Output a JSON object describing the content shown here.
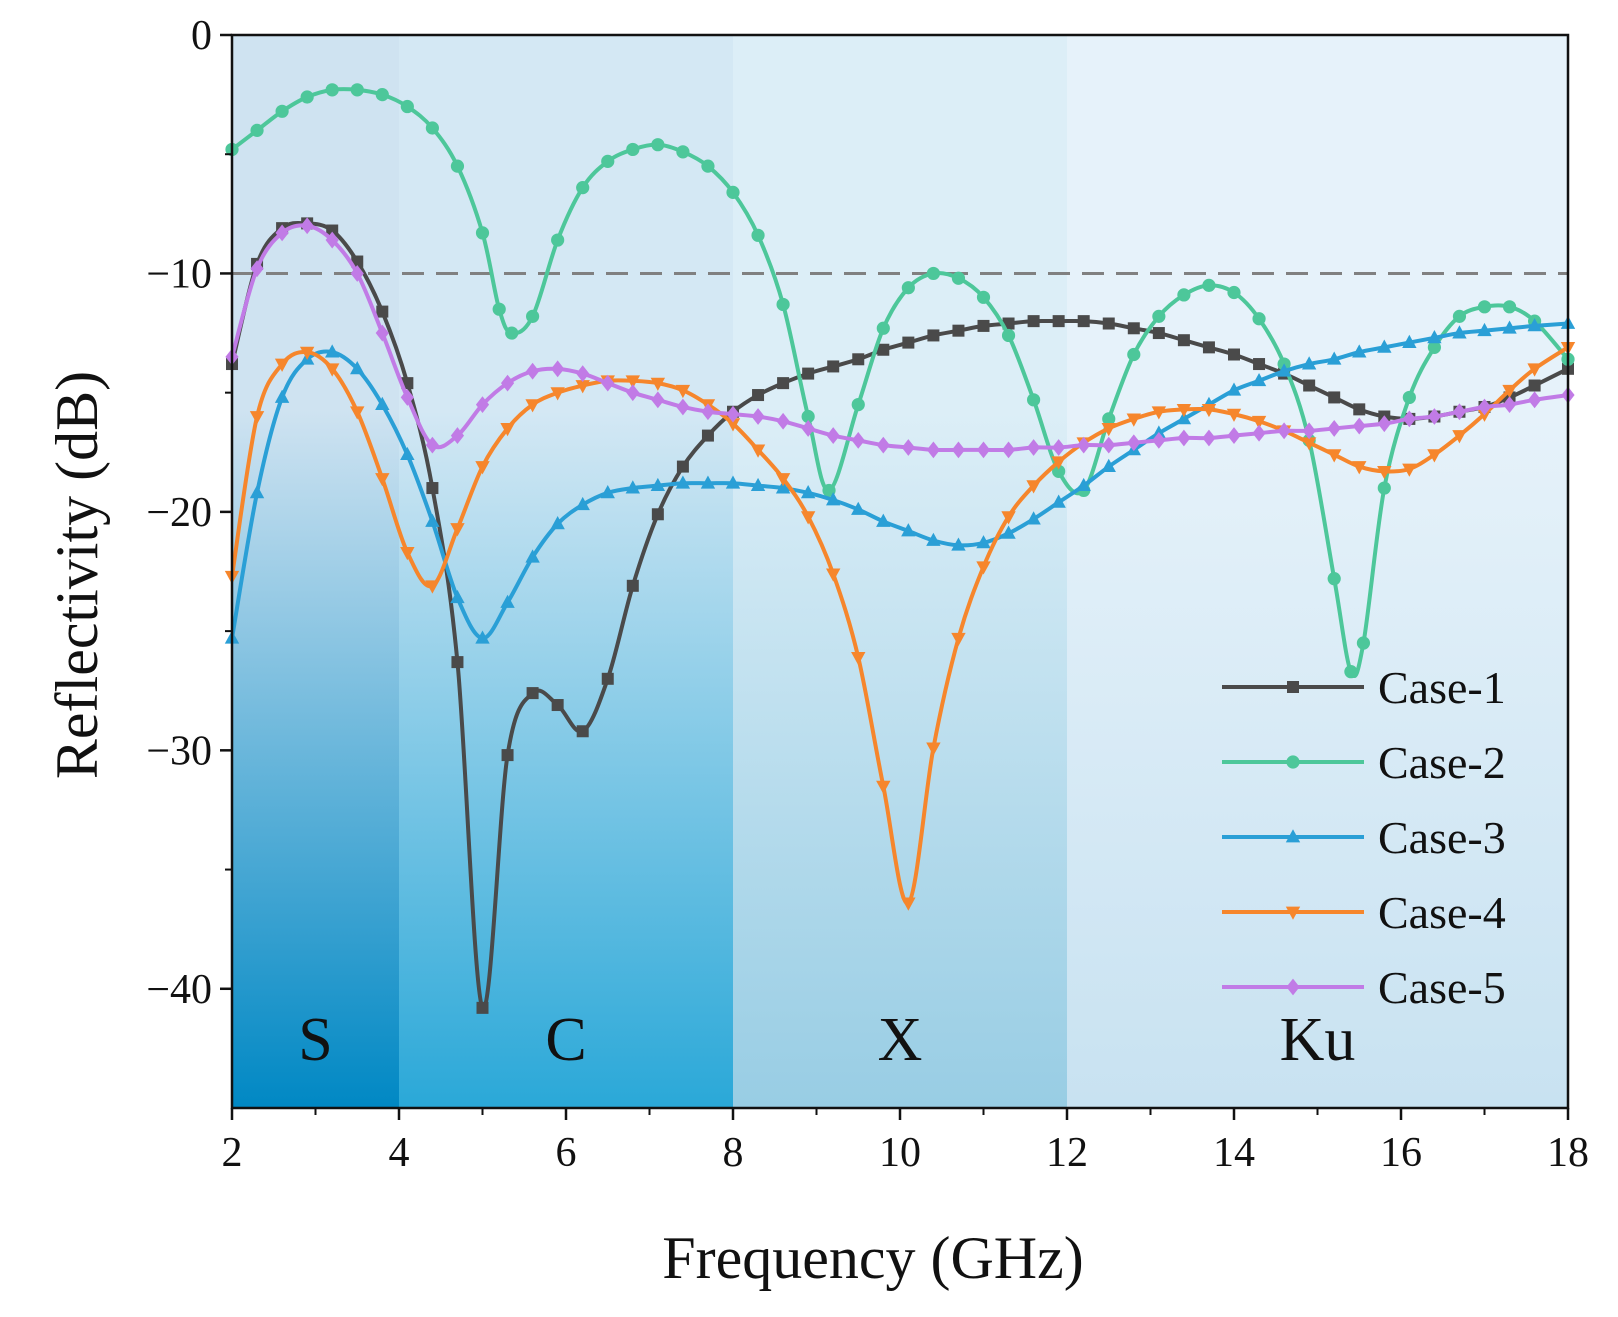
{
  "chart_data": {
    "type": "line",
    "xlabel": "Frequency (GHz)",
    "ylabel": "Reflectivity (dB)",
    "xlim": [
      2,
      18
    ],
    "ylim": [
      -45,
      0
    ],
    "xticks": [
      2,
      4,
      6,
      8,
      10,
      12,
      14,
      16,
      18
    ],
    "yticks": [
      0,
      -10,
      -20,
      -30,
      -40
    ],
    "xtick_labels": [
      "2",
      "4",
      "6",
      "8",
      "10",
      "12",
      "14",
      "16",
      "18"
    ],
    "ytick_labels": [
      "0",
      "−10",
      "−20",
      "−30",
      "−40"
    ],
    "reference_line": {
      "y": -10,
      "style": "dashed",
      "color": "#808080"
    },
    "bands": [
      {
        "label": "S",
        "from": 2,
        "to": 4,
        "color_top": "#cfe3f1",
        "color_bottom": "#0088c4"
      },
      {
        "label": "C",
        "from": 4,
        "to": 8,
        "color_top": "#d4e8f4",
        "color_bottom": "#2aa8d8"
      },
      {
        "label": "X",
        "from": 8,
        "to": 12,
        "color_top": "#dceef7",
        "color_bottom": "#98cde4"
      },
      {
        "label": "Ku",
        "from": 12,
        "to": 18,
        "color_top": "#e6f2fa",
        "color_bottom": "#c8e2f1"
      }
    ],
    "legend_position": "lower-right",
    "series": [
      {
        "name": "Case-1",
        "color": "#4a4a4a",
        "marker": "square",
        "x": [
          2,
          2.3,
          2.6,
          2.9,
          3.2,
          3.5,
          3.8,
          4.1,
          4.4,
          4.7,
          5.0,
          5.3,
          5.6,
          5.9,
          6.2,
          6.5,
          6.8,
          7.1,
          7.4,
          7.7,
          8.0,
          8.3,
          8.6,
          8.9,
          9.2,
          9.5,
          9.8,
          10.1,
          10.4,
          10.7,
          11.0,
          11.3,
          11.6,
          11.9,
          12.2,
          12.5,
          12.8,
          13.1,
          13.4,
          13.7,
          14.0,
          14.3,
          14.6,
          14.9,
          15.2,
          15.5,
          15.8,
          16.1,
          16.4,
          16.7,
          17.0,
          17.3,
          17.6,
          18.0
        ],
        "y": [
          -13.8,
          -9.6,
          -8.1,
          -7.9,
          -8.2,
          -9.5,
          -11.6,
          -14.6,
          -19.0,
          -26.3,
          -40.8,
          -30.2,
          -27.6,
          -28.1,
          -29.2,
          -27.0,
          -23.1,
          -20.1,
          -18.1,
          -16.8,
          -15.8,
          -15.1,
          -14.6,
          -14.2,
          -13.9,
          -13.6,
          -13.2,
          -12.9,
          -12.6,
          -12.4,
          -12.2,
          -12.1,
          -12.0,
          -12.0,
          -12.0,
          -12.1,
          -12.3,
          -12.5,
          -12.8,
          -13.1,
          -13.4,
          -13.8,
          -14.2,
          -14.7,
          -15.2,
          -15.7,
          -16.0,
          -16.1,
          -16.0,
          -15.8,
          -15.6,
          -15.2,
          -14.7,
          -14.0
        ]
      },
      {
        "name": "Case-2",
        "color": "#4dc79a",
        "marker": "circle",
        "x": [
          2,
          2.3,
          2.6,
          2.9,
          3.2,
          3.5,
          3.8,
          4.1,
          4.4,
          4.7,
          5.0,
          5.2,
          5.35,
          5.6,
          5.9,
          6.2,
          6.5,
          6.8,
          7.1,
          7.4,
          7.7,
          8.0,
          8.3,
          8.6,
          8.9,
          9.15,
          9.5,
          9.8,
          10.1,
          10.4,
          10.7,
          11.0,
          11.3,
          11.6,
          11.9,
          12.2,
          12.5,
          12.8,
          13.1,
          13.4,
          13.7,
          14.0,
          14.3,
          14.6,
          14.9,
          15.2,
          15.4,
          15.55,
          15.8,
          16.1,
          16.4,
          16.7,
          17.0,
          17.3,
          17.6,
          18.0
        ],
        "y": [
          -4.8,
          -4.0,
          -3.2,
          -2.6,
          -2.3,
          -2.3,
          -2.5,
          -3.0,
          -3.9,
          -5.5,
          -8.3,
          -11.5,
          -12.5,
          -11.8,
          -8.6,
          -6.4,
          -5.3,
          -4.8,
          -4.6,
          -4.9,
          -5.5,
          -6.6,
          -8.4,
          -11.3,
          -16.0,
          -19.1,
          -15.5,
          -12.3,
          -10.6,
          -10.0,
          -10.2,
          -11.0,
          -12.6,
          -15.3,
          -18.3,
          -19.1,
          -16.1,
          -13.4,
          -11.8,
          -10.9,
          -10.5,
          -10.8,
          -11.9,
          -13.8,
          -17.0,
          -22.8,
          -26.7,
          -25.5,
          -19.0,
          -15.2,
          -13.1,
          -11.8,
          -11.4,
          -11.4,
          -12.0,
          -13.6
        ]
      },
      {
        "name": "Case-3",
        "color": "#2a9fd6",
        "marker": "triangle-up",
        "x": [
          2,
          2.3,
          2.6,
          2.9,
          3.2,
          3.5,
          3.8,
          4.1,
          4.4,
          4.7,
          5.0,
          5.3,
          5.6,
          5.9,
          6.2,
          6.5,
          6.8,
          7.1,
          7.4,
          7.7,
          8.0,
          8.3,
          8.6,
          8.9,
          9.2,
          9.5,
          9.8,
          10.1,
          10.4,
          10.7,
          11.0,
          11.3,
          11.6,
          11.9,
          12.2,
          12.5,
          12.8,
          13.1,
          13.4,
          13.7,
          14.0,
          14.3,
          14.6,
          14.9,
          15.2,
          15.5,
          15.8,
          16.1,
          16.4,
          16.7,
          17.0,
          17.3,
          17.6,
          18.0
        ],
        "y": [
          -25.3,
          -19.2,
          -15.2,
          -13.6,
          -13.3,
          -14.0,
          -15.5,
          -17.6,
          -20.4,
          -23.6,
          -25.3,
          -23.8,
          -21.9,
          -20.5,
          -19.7,
          -19.2,
          -19.0,
          -18.9,
          -18.8,
          -18.8,
          -18.8,
          -18.9,
          -19.0,
          -19.2,
          -19.5,
          -19.9,
          -20.4,
          -20.8,
          -21.2,
          -21.4,
          -21.3,
          -20.9,
          -20.3,
          -19.6,
          -18.9,
          -18.1,
          -17.4,
          -16.7,
          -16.1,
          -15.5,
          -14.9,
          -14.5,
          -14.1,
          -13.8,
          -13.6,
          -13.3,
          -13.1,
          -12.9,
          -12.7,
          -12.5,
          -12.4,
          -12.3,
          -12.2,
          -12.1
        ]
      },
      {
        "name": "Case-4",
        "color": "#f6862c",
        "marker": "triangle-down",
        "x": [
          2,
          2.3,
          2.6,
          2.9,
          3.2,
          3.5,
          3.8,
          4.1,
          4.4,
          4.7,
          5.0,
          5.3,
          5.6,
          5.9,
          6.2,
          6.5,
          6.8,
          7.1,
          7.4,
          7.7,
          8.0,
          8.3,
          8.6,
          8.9,
          9.2,
          9.5,
          9.8,
          10.1,
          10.4,
          10.7,
          11.0,
          11.3,
          11.6,
          11.9,
          12.2,
          12.5,
          12.8,
          13.1,
          13.4,
          13.7,
          14.0,
          14.3,
          14.6,
          14.9,
          15.2,
          15.5,
          15.8,
          16.1,
          16.4,
          16.7,
          17.0,
          17.3,
          17.6,
          18.0
        ],
        "y": [
          -22.7,
          -16.0,
          -13.8,
          -13.3,
          -14.0,
          -15.8,
          -18.6,
          -21.7,
          -23.1,
          -20.7,
          -18.1,
          -16.5,
          -15.5,
          -15.0,
          -14.7,
          -14.5,
          -14.5,
          -14.6,
          -14.9,
          -15.5,
          -16.3,
          -17.4,
          -18.6,
          -20.2,
          -22.6,
          -26.1,
          -31.5,
          -36.4,
          -29.9,
          -25.3,
          -22.3,
          -20.2,
          -18.9,
          -17.9,
          -17.1,
          -16.5,
          -16.1,
          -15.8,
          -15.7,
          -15.7,
          -15.9,
          -16.2,
          -16.6,
          -17.1,
          -17.6,
          -18.1,
          -18.3,
          -18.2,
          -17.6,
          -16.8,
          -15.9,
          -14.9,
          -14.0,
          -13.1
        ]
      },
      {
        "name": "Case-5",
        "color": "#c17be6",
        "marker": "diamond",
        "x": [
          2,
          2.3,
          2.6,
          2.9,
          3.2,
          3.5,
          3.8,
          4.1,
          4.4,
          4.7,
          5.0,
          5.3,
          5.6,
          5.9,
          6.2,
          6.5,
          6.8,
          7.1,
          7.4,
          7.7,
          8.0,
          8.3,
          8.6,
          8.9,
          9.2,
          9.5,
          9.8,
          10.1,
          10.4,
          10.7,
          11.0,
          11.3,
          11.6,
          11.9,
          12.2,
          12.5,
          12.8,
          13.1,
          13.4,
          13.7,
          14.0,
          14.3,
          14.6,
          14.9,
          15.2,
          15.5,
          15.8,
          16.1,
          16.4,
          16.7,
          17.0,
          17.3,
          17.6,
          18.0
        ],
        "y": [
          -13.5,
          -9.8,
          -8.3,
          -8.0,
          -8.6,
          -10.0,
          -12.5,
          -15.2,
          -17.2,
          -16.8,
          -15.5,
          -14.6,
          -14.1,
          -14.0,
          -14.2,
          -14.6,
          -15.0,
          -15.3,
          -15.6,
          -15.8,
          -15.9,
          -16.0,
          -16.2,
          -16.5,
          -16.8,
          -17.0,
          -17.2,
          -17.3,
          -17.4,
          -17.4,
          -17.4,
          -17.4,
          -17.3,
          -17.3,
          -17.2,
          -17.2,
          -17.1,
          -17.0,
          -16.9,
          -16.9,
          -16.8,
          -16.7,
          -16.6,
          -16.6,
          -16.5,
          -16.4,
          -16.3,
          -16.1,
          -16.0,
          -15.8,
          -15.6,
          -15.5,
          -15.3,
          -15.1
        ]
      }
    ]
  }
}
